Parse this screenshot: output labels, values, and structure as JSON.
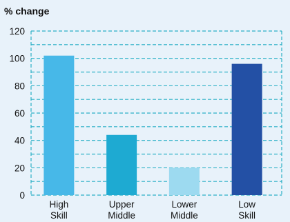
{
  "chart_data": {
    "type": "bar",
    "ylabel": "% change",
    "categories": [
      [
        "High",
        "Skill"
      ],
      [
        "Upper",
        "Middle"
      ],
      [
        "Lower",
        "Middle"
      ],
      [
        "Low",
        "Skill"
      ]
    ],
    "values": [
      102,
      44,
      20,
      96
    ],
    "colors": [
      "#47b8e8",
      "#1eaad2",
      "#9ddaf0",
      "#2350a5"
    ],
    "ylim": [
      0,
      120
    ],
    "yticks": [
      0,
      20,
      40,
      60,
      80,
      100,
      120
    ],
    "grid": true
  }
}
